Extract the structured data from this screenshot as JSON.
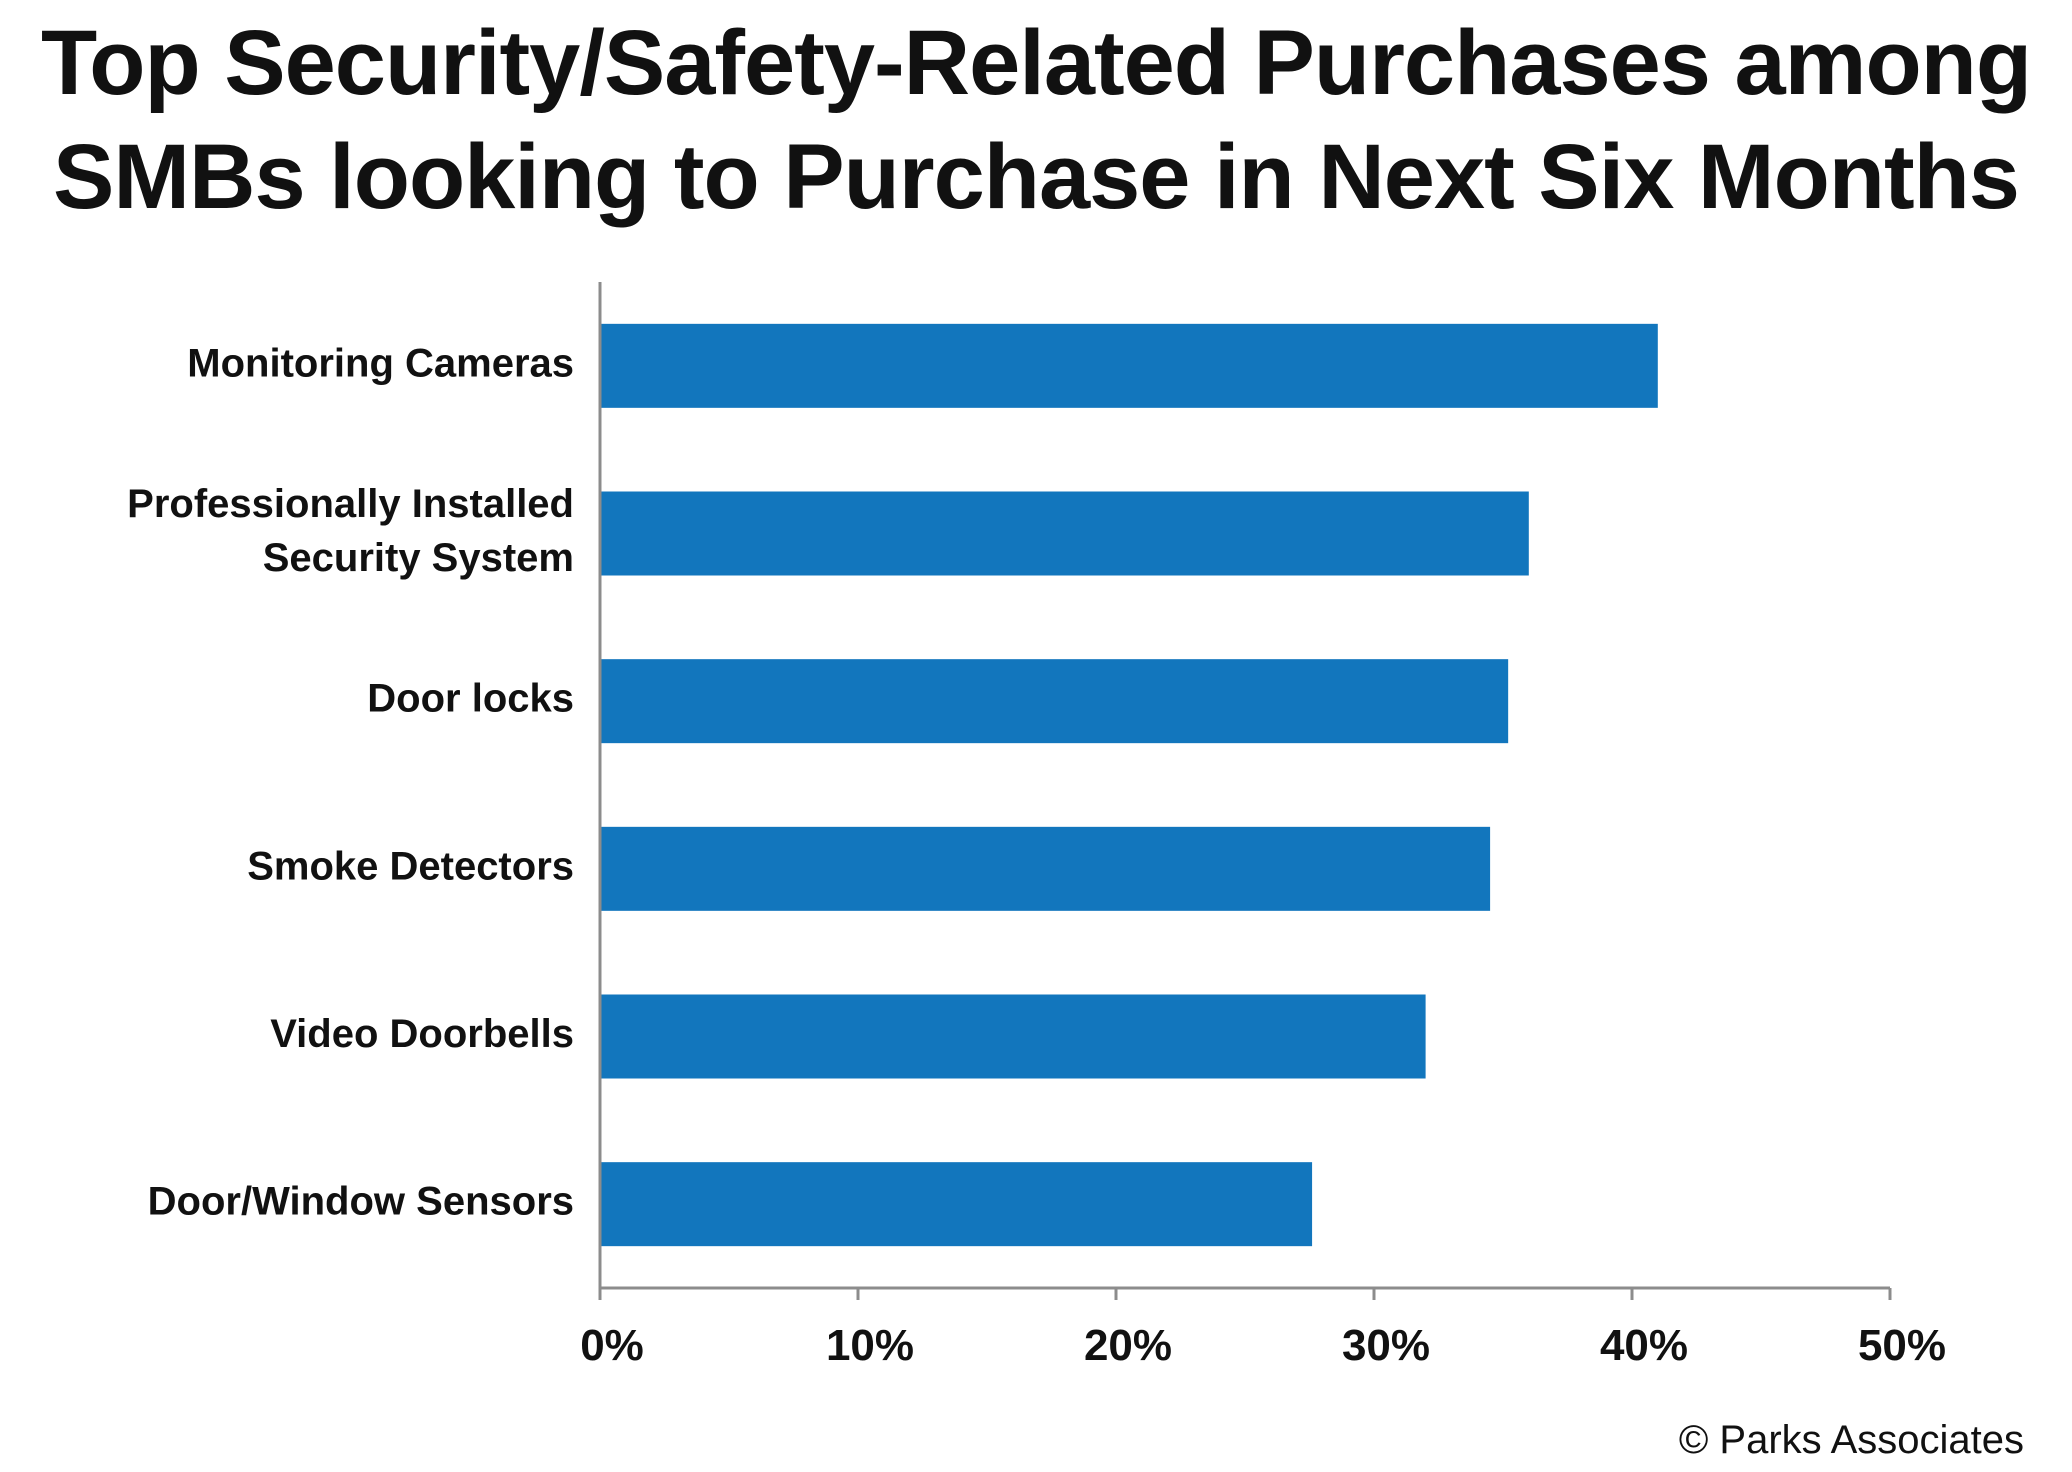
{
  "chart_data": {
    "type": "bar",
    "orientation": "horizontal",
    "title_lines": [
      "Top Security/Safety-Related Purchases among",
      "SMBs looking to Purchase in Next Six Months"
    ],
    "categories": [
      [
        "Monitoring Cameras"
      ],
      [
        "Professionally Installed",
        "Security System"
      ],
      [
        "Door locks"
      ],
      [
        "Smoke Detectors"
      ],
      [
        "Video Doorbells"
      ],
      [
        "Door/Window Sensors"
      ]
    ],
    "values": [
      41,
      36,
      35.2,
      34.5,
      32,
      27.6
    ],
    "xlim": [
      0,
      50
    ],
    "xticks": [
      0,
      10,
      20,
      30,
      40,
      50
    ],
    "tick_suffix": "%",
    "bar_color": "#1276BD",
    "axis_color": "#8c8c8c",
    "grid": false,
    "legend": "none"
  },
  "footer": {
    "credit": "© Parks Associates"
  }
}
